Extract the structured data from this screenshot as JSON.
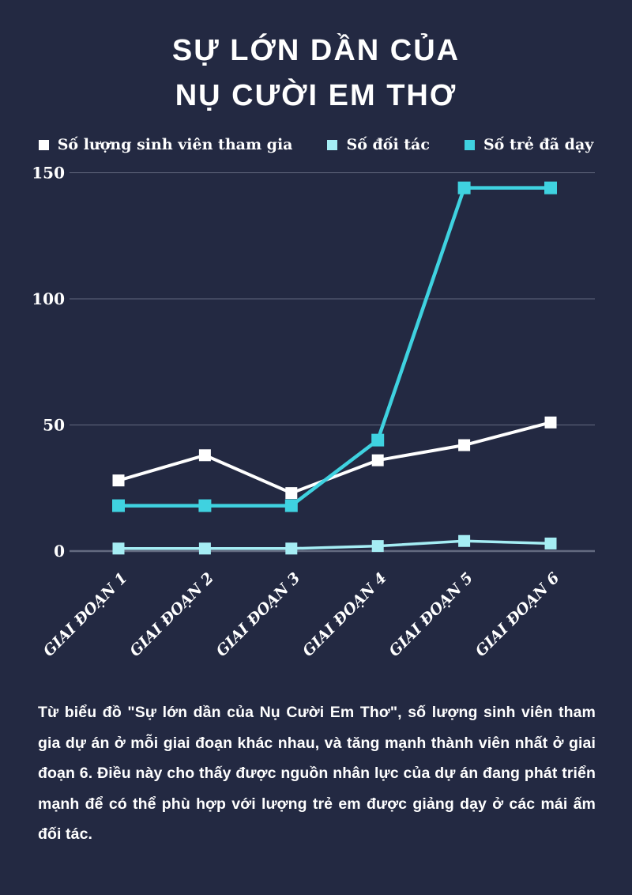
{
  "title": {
    "line1": "SỰ LỚN DẦN CỦA",
    "line2": "NỤ CƯỜI EM THƠ"
  },
  "chart_data": {
    "type": "line",
    "title": "Sự lớn dần của Nụ Cười Em Thơ",
    "categories": [
      "GIAI ĐOẠN 1",
      "GIAI ĐOẠN 2",
      "GIAI ĐOẠN 3",
      "GIAI ĐOẠN 4",
      "GIAI ĐOẠN 5",
      "GIAI ĐOẠN 6"
    ],
    "series": [
      {
        "name": "Số lượng sinh viên tham gia",
        "color": "#ffffff",
        "values": [
          28,
          38,
          23,
          36,
          42,
          51
        ]
      },
      {
        "name": "Số đối tác",
        "color": "#a5edf4",
        "values": [
          1,
          1,
          1,
          2,
          4,
          3
        ]
      },
      {
        "name": "Số trẻ đã dạy",
        "color": "#3fd2e0",
        "values": [
          18,
          18,
          18,
          44,
          144,
          144
        ]
      }
    ],
    "yticks": [
      0,
      50,
      100,
      150
    ],
    "ylim": [
      0,
      155
    ],
    "xlabel": "",
    "ylabel": "",
    "grid": true,
    "legend_position": "top",
    "marker": "square",
    "x_label_rotation_deg": -45
  },
  "caption": {
    "text": "Từ biểu đồ \"Sự lớn dần của Nụ Cười Em Thơ\",  số lượng sinh viên tham gia dự án ở mỗi giai đoạn khác nhau, và tăng mạnh thành viên nhất ở giai đoạn 6.  Điều này cho thấy được nguồn nhân lực của dự án đang phát triển mạnh để có thể phù hợp với lượng trẻ em được giảng dạy ở các mái ấm đối tác."
  },
  "colors": {
    "background": "#232942",
    "grid_line": "#8d93a8",
    "zero_line": "#636a80",
    "text": "#ffffff"
  }
}
